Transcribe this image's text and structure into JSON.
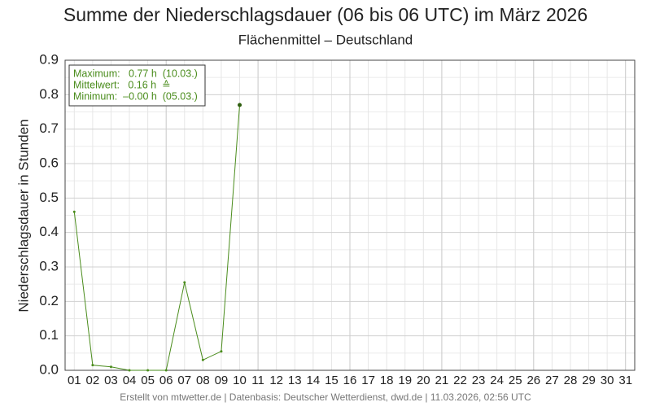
{
  "chart_data": {
    "type": "line",
    "title": "Summe der Niederschlagsdauer (06 bis 06 UTC) im März 2026",
    "subtitle": "Flächenmittel – Deutschland",
    "y_label": "Niederschlagsdauer in Stunden",
    "footer": "Erstellt von mtwetter.de | Datenbasis: Deutscher Wetterdienst, dwd.de | 11.03.2026, 02:56 UTC",
    "stats": [
      "Maximum:   0.77 h  (10.03.)",
      "Mittelwert:   0.16 h  ≙",
      "Minimum:  –0.00 h  (05.03.)"
    ],
    "categories": [
      "01",
      "02",
      "03",
      "04",
      "05",
      "06",
      "07",
      "08",
      "09",
      "10",
      "11",
      "12",
      "13",
      "14",
      "15",
      "16",
      "17",
      "18",
      "19",
      "20",
      "21",
      "22",
      "23",
      "24",
      "25",
      "26",
      "27",
      "28",
      "29",
      "30",
      "31"
    ],
    "series": [
      {
        "name": "Niederschlagsdauer",
        "color": "#4a8c1c",
        "values": [
          0.46,
          0.015,
          0.01,
          0.0,
          0.0,
          0.0,
          0.255,
          0.03,
          0.055,
          0.77,
          null,
          null,
          null,
          null,
          null,
          null,
          null,
          null,
          null,
          null,
          null,
          null,
          null,
          null,
          null,
          null,
          null,
          null,
          null,
          null,
          null
        ]
      }
    ],
    "ylim": [
      0,
      0.9
    ],
    "yticks": [
      {
        "value": 0,
        "label": "0.0"
      },
      0.1,
      0.2,
      0.3,
      0.4,
      0.5,
      0.6,
      0.7,
      0.8,
      0.9
    ],
    "grid": true
  }
}
